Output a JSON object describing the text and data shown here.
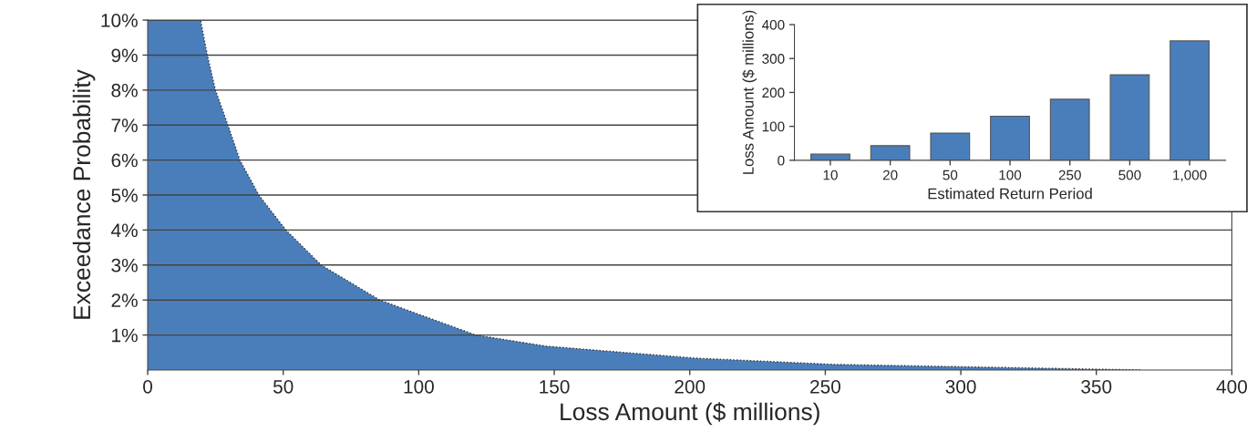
{
  "chart_data": [
    {
      "type": "area",
      "xlabel": "Loss Amount ($ millions)",
      "ylabel": "Exceedance Probability",
      "x": [
        0,
        19.5,
        22,
        25,
        29.6,
        34,
        41,
        51,
        64,
        85.6,
        121,
        147,
        202,
        253,
        302,
        367
      ],
      "series": [
        {
          "color": "#4a7ebb",
          "values": [
            10,
            10,
            9,
            8,
            7,
            6,
            5,
            4,
            3,
            2,
            1,
            0.68,
            0.34,
            0.16,
            0.09,
            0
          ]
        }
      ],
      "xlim": [
        0,
        400
      ],
      "xticks": [
        0,
        50,
        100,
        150,
        200,
        250,
        300,
        350,
        400
      ],
      "ylim": [
        0,
        10
      ],
      "yticks": [
        {
          "value": 1,
          "label": "1%"
        },
        {
          "value": 2,
          "label": "2%"
        },
        {
          "value": 3,
          "label": "3%"
        },
        {
          "value": 4,
          "label": "4%"
        },
        {
          "value": 5,
          "label": "5%"
        },
        {
          "value": 6,
          "label": "6%"
        },
        {
          "value": 7,
          "label": "7%"
        },
        {
          "value": 8,
          "label": "8%"
        },
        {
          "value": 9,
          "label": "9%"
        },
        {
          "value": 10,
          "label": "10%"
        }
      ],
      "grid": "y"
    },
    {
      "type": "bar",
      "xlabel": "Estimated Return Period",
      "ylabel": "Loss Amount ($ millions)",
      "categories": [
        "10",
        "20",
        "50",
        "100",
        "250",
        "500",
        "1,000"
      ],
      "series": [
        {
          "color": "#4a7ebb",
          "values": [
            18,
            43,
            80,
            130,
            180,
            252,
            352
          ]
        }
      ],
      "ylim": [
        0,
        400
      ],
      "yticks": [
        0,
        100,
        200,
        300,
        400
      ],
      "grid": false
    }
  ]
}
